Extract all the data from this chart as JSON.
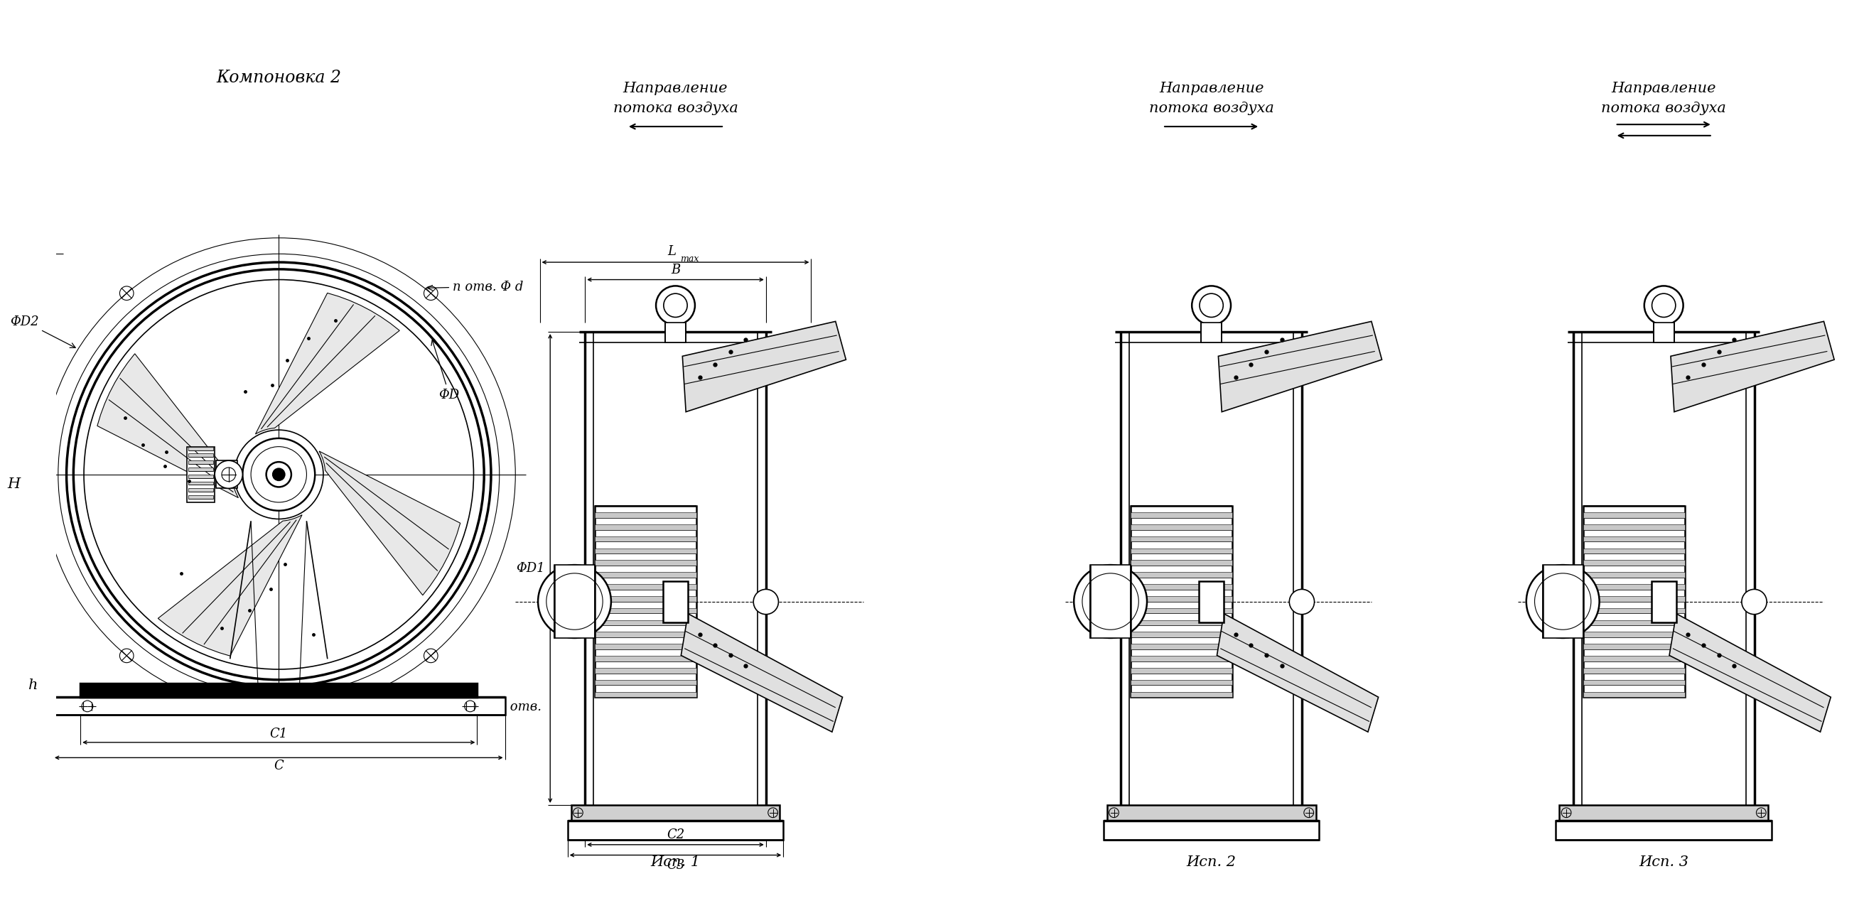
{
  "bg_color": "#ffffff",
  "line_color": "#000000",
  "title_kompanovka": "Компоновка 2",
  "label_H": "H",
  "label_h": "h",
  "label_phiD2": "ΦD2",
  "label_phiD": "ΦD",
  "label_n_otv_phi_d": "n отв. Φ d",
  "label_phid1_4otv": "Φd1 4 отв.",
  "label_C1": "C1",
  "label_C": "C",
  "label_C2": "C2",
  "label_C3": "C3",
  "label_phiD1": "ΦD1",
  "label_Lmax": "L",
  "label_Lmax_sub": "max",
  "label_B": "B",
  "label_isp1": "Исп. 1",
  "label_isp2": "Исп. 2",
  "label_isp3": "Исп. 3",
  "label_napravlenie": "Направление",
  "label_potoka_vozduha": "потока воздуха",
  "font_italic": "italic",
  "font_family": "DejaVu Serif",
  "font_size_title": 17,
  "font_size_label": 13,
  "font_size_isp": 15,
  "font_size_dim": 13
}
